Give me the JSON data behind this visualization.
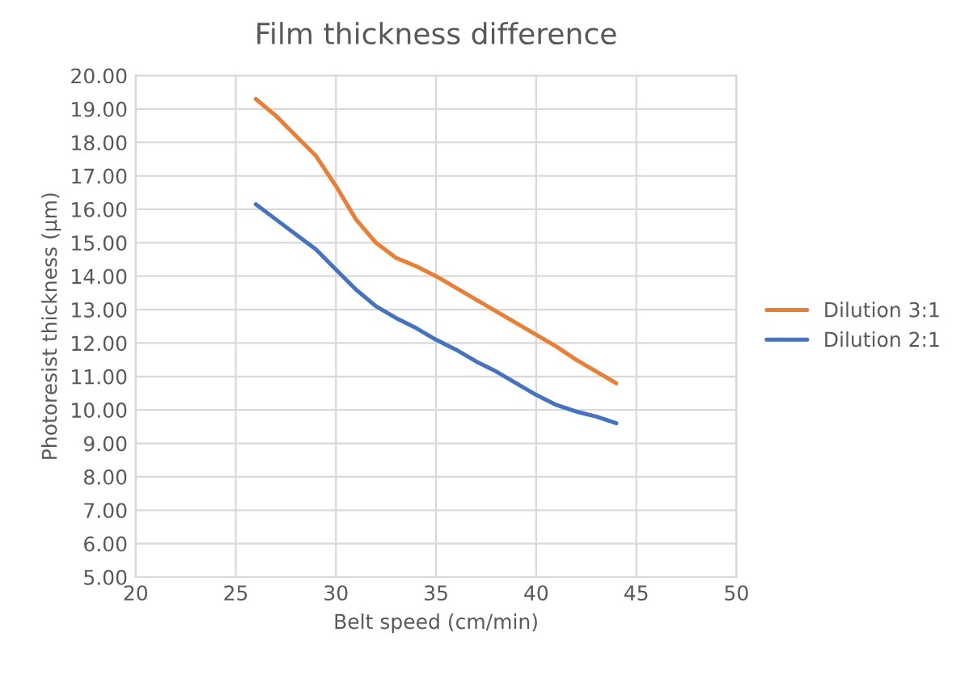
{
  "chart_data": {
    "type": "line",
    "title": "Film thickness difference",
    "xlabel": "Belt speed (cm/min)",
    "ylabel": "Photoresist thickness (µm)",
    "xlim": [
      20,
      50
    ],
    "xticks": [
      20,
      25,
      30,
      35,
      40,
      45,
      50
    ],
    "ylim": [
      5,
      20
    ],
    "yticks": [
      {
        "value": 5,
        "label": "5.00"
      },
      {
        "value": 6,
        "label": "6.00"
      },
      {
        "value": 7,
        "label": "7.00"
      },
      {
        "value": 8,
        "label": "8.00"
      },
      {
        "value": 9,
        "label": "9.00"
      },
      {
        "value": 10,
        "label": "10.00"
      },
      {
        "value": 11,
        "label": "11.00"
      },
      {
        "value": 12,
        "label": "12.00"
      },
      {
        "value": 13,
        "label": "13.00"
      },
      {
        "value": 14,
        "label": "14.00"
      },
      {
        "value": 15,
        "label": "15.00"
      },
      {
        "value": 16,
        "label": "16.00"
      },
      {
        "value": 17,
        "label": "17.00"
      },
      {
        "value": 18,
        "label": "18.00"
      },
      {
        "value": 19,
        "label": "19.00"
      },
      {
        "value": 20,
        "label": "20.00"
      }
    ],
    "grid": true,
    "legend": "right",
    "marker": "none",
    "line_style": "solid",
    "series": [
      {
        "name": "Dilution 3:1",
        "color": "#ed7d31",
        "x": [
          26,
          27,
          28,
          29,
          30,
          31,
          32,
          33,
          34,
          35,
          36,
          37,
          38,
          39,
          40,
          41,
          42,
          43,
          44
        ],
        "values": [
          19.3,
          18.8,
          18.2,
          17.6,
          16.7,
          15.7,
          15.0,
          14.55,
          14.3,
          14.0,
          13.65,
          13.3,
          12.95,
          12.6,
          12.25,
          11.9,
          11.5,
          11.15,
          10.8
        ]
      },
      {
        "name": "Dilution 2:1",
        "color": "#4472c4",
        "x": [
          26,
          27,
          28,
          29,
          30,
          31,
          32,
          33,
          34,
          35,
          36,
          37,
          38,
          39,
          40,
          41,
          42,
          43,
          44
        ],
        "values": [
          16.15,
          15.7,
          15.25,
          14.8,
          14.2,
          13.6,
          13.1,
          12.75,
          12.45,
          12.1,
          11.8,
          11.45,
          11.15,
          10.8,
          10.45,
          10.15,
          9.95,
          9.8,
          9.6
        ]
      }
    ]
  }
}
